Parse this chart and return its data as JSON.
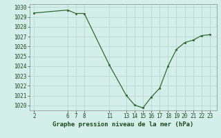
{
  "x": [
    2,
    6,
    7,
    8,
    11,
    13,
    14,
    15,
    16,
    17,
    18,
    19,
    20,
    21,
    22,
    23
  ],
  "y": [
    1029.4,
    1029.7,
    1029.35,
    1029.35,
    1024.1,
    1021.05,
    1020.05,
    1019.75,
    1020.85,
    1021.75,
    1024.0,
    1025.7,
    1026.4,
    1026.65,
    1027.1,
    1027.2
  ],
  "line_color": "#2d6a2d",
  "marker_color": "#2d6a2d",
  "bg_color": "#d4eeea",
  "grid_color": "#b8d8d4",
  "title": "Graphe pression niveau de la mer (hPa)",
  "xlabel_ticks": [
    2,
    6,
    7,
    8,
    11,
    13,
    14,
    15,
    16,
    17,
    18,
    19,
    20,
    21,
    22,
    23
  ],
  "ylim": [
    1019.5,
    1030.3
  ],
  "xlim": [
    1.5,
    23.8
  ],
  "yticks": [
    1020,
    1021,
    1022,
    1023,
    1024,
    1025,
    1026,
    1027,
    1028,
    1029,
    1030
  ],
  "title_fontsize": 6.5,
  "tick_fontsize": 5.5
}
